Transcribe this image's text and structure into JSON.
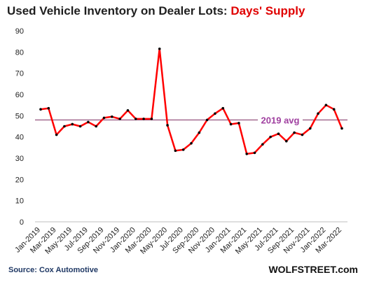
{
  "title": {
    "part1": "Used Vehicle Inventory on Dealer Lots: ",
    "part2": "Days' Supply"
  },
  "source": "Source: Cox Automotive",
  "brand": "WOLFSTREET.com",
  "colors": {
    "line": "#ff0000",
    "marker": "#000000",
    "avg_line": "#7b2c5f",
    "avg_label": "#a040a0",
    "title_accent": "#e00000"
  },
  "chart_data": {
    "type": "line",
    "xlabels": [
      "Jan-2019",
      "Mar-2019",
      "May-2019",
      "Jul-2019",
      "Sep-2019",
      "Nov-2019",
      "Jan-2020",
      "Mar-2020",
      "May-2020",
      "Jul-2020",
      "Sep-2020",
      "Nov-2020",
      "Jan-2021",
      "Mar-2021",
      "May-2021",
      "Jul-2021",
      "Sep-2021",
      "Nov-2021",
      "Jan-2022",
      "Mar-2022"
    ],
    "series": [
      {
        "values": [
          53,
          53.5,
          41,
          45,
          46,
          45,
          47,
          45,
          49,
          49.5,
          48.5,
          52.5,
          48.5,
          48.5,
          48.5,
          81.5,
          45.5,
          33.5,
          34,
          37,
          42,
          48,
          51,
          53.5,
          46,
          46.5,
          32,
          32.5,
          36.5,
          40,
          41.5,
          38,
          42,
          41,
          44,
          51,
          55,
          53,
          44
        ]
      }
    ],
    "reference_line": {
      "label": "2019 avg",
      "value": 48
    },
    "ylim": [
      0,
      90
    ],
    "yticks": [
      0,
      10,
      20,
      30,
      40,
      50,
      60,
      70,
      80,
      90
    ],
    "grid": false
  }
}
